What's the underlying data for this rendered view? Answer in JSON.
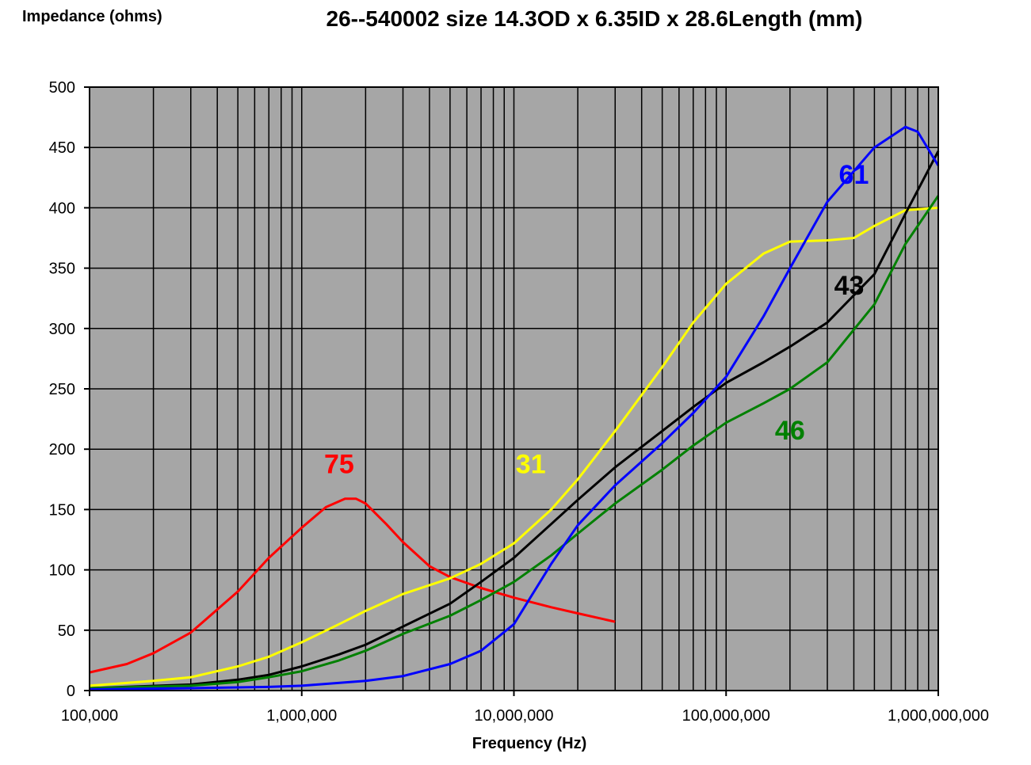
{
  "chart_data": {
    "type": "line",
    "title": "26--540002 size 14.3OD x 6.35ID x 28.6Length (mm)",
    "ylabel": "Impedance (ohms)",
    "xlabel": "Frequency (Hz)",
    "x_scale": "log",
    "xlim": [
      100000,
      1000000000
    ],
    "ylim": [
      0,
      500
    ],
    "x_ticks": [
      {
        "value": 100000,
        "label": "100,000"
      },
      {
        "value": 1000000,
        "label": "1,000,000"
      },
      {
        "value": 10000000,
        "label": "10,000,000"
      },
      {
        "value": 100000000,
        "label": "100,000,000"
      },
      {
        "value": 1000000000,
        "label": "1,000,000,000"
      }
    ],
    "y_ticks": [
      {
        "value": 0,
        "label": "0"
      },
      {
        "value": 50,
        "label": "50"
      },
      {
        "value": 100,
        "label": "100"
      },
      {
        "value": 150,
        "label": "150"
      },
      {
        "value": 200,
        "label": "200"
      },
      {
        "value": 250,
        "label": "250"
      },
      {
        "value": 300,
        "label": "300"
      },
      {
        "value": 350,
        "label": "350"
      },
      {
        "value": 400,
        "label": "400"
      },
      {
        "value": 450,
        "label": "450"
      },
      {
        "value": 500,
        "label": "500"
      }
    ],
    "grid": true,
    "plot_background": "#a6a6a6",
    "series": [
      {
        "name": "75",
        "color": "#ff0000",
        "label_at": [
          1500000,
          180
        ],
        "points": [
          [
            100000,
            15
          ],
          [
            150000,
            22
          ],
          [
            200000,
            31
          ],
          [
            300000,
            48
          ],
          [
            500000,
            82
          ],
          [
            700000,
            110
          ],
          [
            1000000,
            135
          ],
          [
            1300000,
            152
          ],
          [
            1600000,
            159
          ],
          [
            1800000,
            159
          ],
          [
            2000000,
            155
          ],
          [
            2500000,
            138
          ],
          [
            3000000,
            123
          ],
          [
            4000000,
            103
          ],
          [
            5000000,
            94
          ],
          [
            7000000,
            85
          ],
          [
            10000000,
            77
          ],
          [
            15000000,
            69
          ],
          [
            20000000,
            64
          ],
          [
            30000000,
            57
          ]
        ]
      },
      {
        "name": "31",
        "color": "#ffff00",
        "label_at": [
          12000000,
          180
        ],
        "points": [
          [
            100000,
            4
          ],
          [
            200000,
            8
          ],
          [
            300000,
            11
          ],
          [
            500000,
            20
          ],
          [
            700000,
            28
          ],
          [
            1000000,
            40
          ],
          [
            1500000,
            55
          ],
          [
            2000000,
            66
          ],
          [
            3000000,
            80
          ],
          [
            5000000,
            93
          ],
          [
            7000000,
            105
          ],
          [
            10000000,
            122
          ],
          [
            15000000,
            150
          ],
          [
            20000000,
            175
          ],
          [
            30000000,
            215
          ],
          [
            50000000,
            268
          ],
          [
            70000000,
            305
          ],
          [
            100000000,
            337
          ],
          [
            150000000,
            362
          ],
          [
            200000000,
            372
          ],
          [
            300000000,
            373
          ],
          [
            400000000,
            375
          ],
          [
            500000000,
            385
          ],
          [
            700000000,
            398
          ],
          [
            1000000000,
            400
          ]
        ]
      },
      {
        "name": "43",
        "color": "#000000",
        "label_at": [
          380000000,
          328
        ],
        "points": [
          [
            100000,
            2
          ],
          [
            300000,
            5
          ],
          [
            500000,
            9
          ],
          [
            700000,
            13
          ],
          [
            1000000,
            20
          ],
          [
            1500000,
            30
          ],
          [
            2000000,
            38
          ],
          [
            3000000,
            53
          ],
          [
            5000000,
            72
          ],
          [
            7000000,
            90
          ],
          [
            10000000,
            110
          ],
          [
            15000000,
            138
          ],
          [
            20000000,
            158
          ],
          [
            30000000,
            185
          ],
          [
            50000000,
            215
          ],
          [
            70000000,
            235
          ],
          [
            100000000,
            255
          ],
          [
            150000000,
            272
          ],
          [
            200000000,
            285
          ],
          [
            300000000,
            305
          ],
          [
            500000000,
            345
          ],
          [
            700000000,
            395
          ],
          [
            1000000000,
            447
          ]
        ]
      },
      {
        "name": "46",
        "color": "#008000",
        "label_at": [
          200000000,
          208
        ],
        "points": [
          [
            100000,
            2
          ],
          [
            300000,
            4
          ],
          [
            500000,
            7
          ],
          [
            700000,
            11
          ],
          [
            1000000,
            16
          ],
          [
            1500000,
            25
          ],
          [
            2000000,
            33
          ],
          [
            3000000,
            47
          ],
          [
            5000000,
            62
          ],
          [
            7000000,
            75
          ],
          [
            10000000,
            90
          ],
          [
            15000000,
            112
          ],
          [
            20000000,
            130
          ],
          [
            30000000,
            155
          ],
          [
            50000000,
            183
          ],
          [
            70000000,
            203
          ],
          [
            100000000,
            222
          ],
          [
            150000000,
            238
          ],
          [
            200000000,
            250
          ],
          [
            300000000,
            272
          ],
          [
            500000000,
            320
          ],
          [
            700000000,
            370
          ],
          [
            1000000000,
            410
          ]
        ]
      },
      {
        "name": "61",
        "color": "#0000ff",
        "label_at": [
          400000000,
          420
        ],
        "points": [
          [
            100000,
            1
          ],
          [
            300000,
            2
          ],
          [
            700000,
            3
          ],
          [
            1000000,
            4
          ],
          [
            2000000,
            8
          ],
          [
            3000000,
            12
          ],
          [
            5000000,
            22
          ],
          [
            7000000,
            33
          ],
          [
            10000000,
            55
          ],
          [
            15000000,
            105
          ],
          [
            20000000,
            137
          ],
          [
            30000000,
            170
          ],
          [
            50000000,
            205
          ],
          [
            70000000,
            230
          ],
          [
            100000000,
            260
          ],
          [
            150000000,
            310
          ],
          [
            200000000,
            350
          ],
          [
            300000000,
            405
          ],
          [
            500000000,
            450
          ],
          [
            700000000,
            467
          ],
          [
            800000000,
            463
          ],
          [
            1000000000,
            435
          ]
        ]
      }
    ]
  }
}
